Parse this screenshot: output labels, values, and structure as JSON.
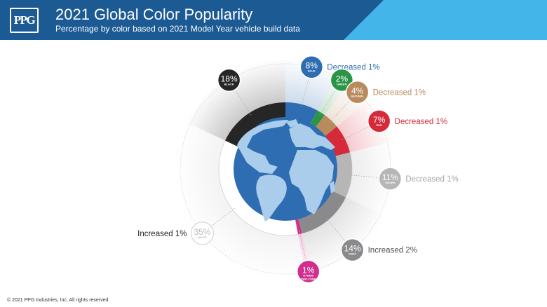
{
  "header": {
    "logo": "PPG",
    "title": "2021 Global Color Popularity",
    "subtitle": "Percentage by color based on 2021 Model Year vehicle build data",
    "bg_color": "#1c5a93",
    "accent_color": "#43b5e8"
  },
  "chart_data": {
    "type": "pie",
    "title": "2021 Global Color Popularity",
    "subtitle": "Percentage by color based on 2021 Model Year vehicle build data",
    "slices": [
      {
        "label": "BLUE",
        "pct_label": "8%",
        "value": 8,
        "color": "#2e6db1",
        "change": "Decreased 1%"
      },
      {
        "label": "GREEN",
        "pct_label": "2%",
        "value": 2,
        "color": "#2a9448",
        "change": ""
      },
      {
        "label": "NATURAL",
        "pct_label": "4%",
        "value": 4,
        "color": "#b88a5c",
        "change": "Decreased 1%"
      },
      {
        "label": "RED",
        "pct_label": "7%",
        "value": 7,
        "color": "#d6293a",
        "change": "Decreased 1%"
      },
      {
        "label": "SILVER",
        "pct_label": "11%",
        "value": 11,
        "color": "#b6b6b6",
        "change": "Decreased 1%"
      },
      {
        "label": "GRAY",
        "pct_label": "14%",
        "value": 14,
        "color": "#8a8a8c",
        "change": "Increased 2%"
      },
      {
        "label": "OTHER/ TWO-TONE",
        "pct_label": "1%",
        "value": 1,
        "color": "#d02f8e",
        "change": ""
      },
      {
        "label": "WHITE",
        "pct_label": "35%",
        "value": 35,
        "color": "#ffffff",
        "change": "Increased 1%"
      },
      {
        "label": "BLACK",
        "pct_label": "18%",
        "value": 18,
        "color": "#262626",
        "change": ""
      }
    ],
    "center_icon": "globe-icon",
    "globe_color": "#2f6db3",
    "land_color": "#a9cdea"
  },
  "footer": {
    "copyright": "© 2021 PPG Industries, Inc. All rights reserved"
  }
}
